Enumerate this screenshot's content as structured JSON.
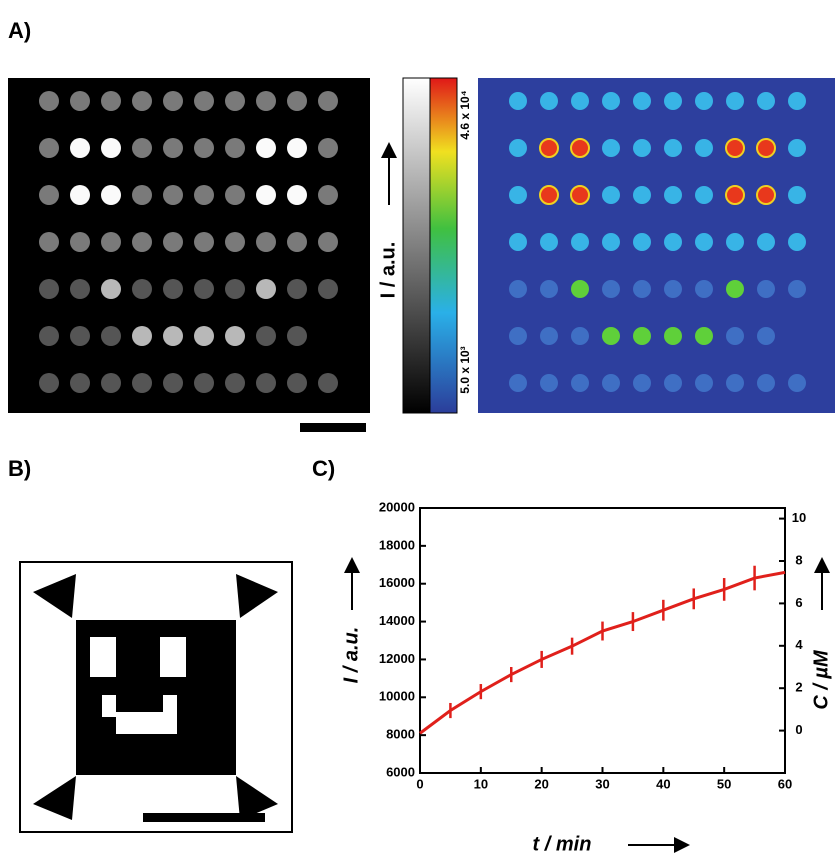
{
  "panels": {
    "a": {
      "label": "A)",
      "colorbar_label": "I / a.u.",
      "colorbar_max": "4.6 x 10⁴",
      "colorbar_min": "5.0 x 10³"
    },
    "b": {
      "label": "B)"
    },
    "c": {
      "label": "C)"
    }
  },
  "chart_data": {
    "type": "line",
    "xlabel": "t / min",
    "ylabel": "I / a.u.",
    "y2label": "C / µM",
    "x": [
      0,
      5,
      10,
      15,
      20,
      25,
      30,
      35,
      40,
      45,
      50,
      55,
      60
    ],
    "series": [
      {
        "color": "#e0201b",
        "values": [
          8100,
          9300,
          10300,
          11200,
          12000,
          12700,
          13500,
          14000,
          14600,
          15200,
          15700,
          16300,
          16600
        ],
        "errors": [
          null,
          400,
          400,
          400,
          450,
          450,
          500,
          500,
          550,
          550,
          600,
          650,
          null
        ]
      }
    ],
    "xlim": [
      0,
      60
    ],
    "xticks": [
      0,
      10,
      20,
      30,
      40,
      50,
      60
    ],
    "ylim": [
      6000,
      20000
    ],
    "yticks": [
      6000,
      8000,
      10000,
      12000,
      14000,
      16000,
      18000,
      20000
    ],
    "y2lim": [
      -2,
      10.5
    ],
    "y2ticks": [
      0,
      2,
      4,
      6,
      8,
      10
    ]
  }
}
